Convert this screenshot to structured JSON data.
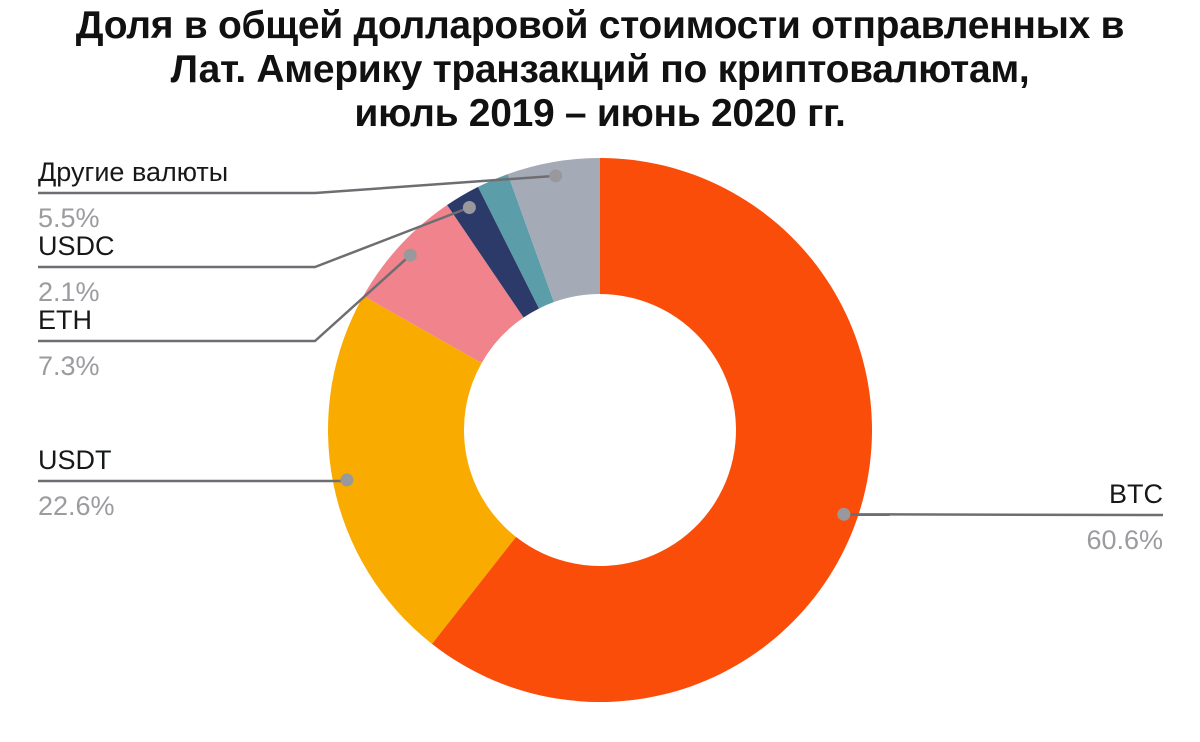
{
  "chart_data": {
    "type": "pie",
    "subtype": "donut",
    "title": "Доля в общей долларовой стоимости отправленных в Лат. Америку транзакций по криптовалютам, июль 2019 – июнь 2020 гг.",
    "title_lines": [
      "Доля в общей долларовой стоимости отправленных в",
      "Лат. Америку транзакций по криптовалютам,",
      "июль 2019 – июнь 2020 гг."
    ],
    "unit": "%",
    "direction": "clockwise",
    "start_angle_deg": 0,
    "donut_hole_ratio": 0.5,
    "legend_position": "callout-labels",
    "grid": false,
    "slices": [
      {
        "id": "btc",
        "label": "BTC",
        "value": 60.6,
        "percent_label": "60.6%",
        "color": "#FA4D09",
        "label_visible": true
      },
      {
        "id": "usdt",
        "label": "USDT",
        "value": 22.6,
        "percent_label": "22.6%",
        "color": "#FAAB00",
        "label_visible": true
      },
      {
        "id": "eth",
        "label": "ETH",
        "value": 7.3,
        "percent_label": "7.3%",
        "color": "#F0838C",
        "label_visible": true
      },
      {
        "id": "usdc",
        "label": "USDC",
        "value": 2.1,
        "percent_label": "2.1%",
        "color": "#2B3A69",
        "label_visible": true
      },
      {
        "id": "minor",
        "label": "",
        "value": 1.9,
        "percent_label": "",
        "color": "#5B9DA8",
        "label_visible": false
      },
      {
        "id": "other",
        "label": "Другие валюты",
        "value": 5.5,
        "percent_label": "5.5%",
        "color": "#A4ABB7",
        "label_visible": true
      }
    ]
  },
  "theme": {
    "background": "#FFFFFF",
    "title_text": "#111111",
    "label_text": "#17181A",
    "percent_text": "#9B9BA0",
    "callout_line": "#6E6E72",
    "callout_dot": "#99999D"
  }
}
